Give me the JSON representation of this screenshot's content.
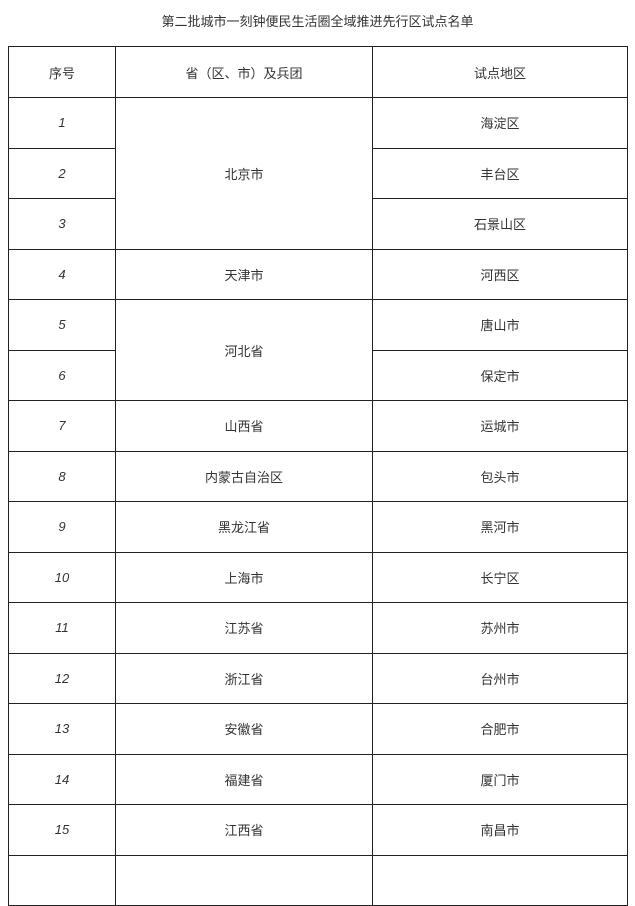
{
  "title": "第二批城市一刻钟便民生活圈全域推进先行区试点名单",
  "headers": {
    "index": "序号",
    "province": "省（区、市）及兵团",
    "region": "试点地区"
  },
  "rows": [
    {
      "index": "1",
      "province": "北京市",
      "region": "海淀区"
    },
    {
      "index": "2",
      "province": "北京市",
      "region": "丰台区"
    },
    {
      "index": "3",
      "province": "北京市",
      "region": "石景山区"
    },
    {
      "index": "4",
      "province": "天津市",
      "region": "河西区"
    },
    {
      "index": "5",
      "province": "河北省",
      "region": "唐山市"
    },
    {
      "index": "6",
      "province": "河北省",
      "region": "保定市"
    },
    {
      "index": "7",
      "province": "山西省",
      "region": "运城市"
    },
    {
      "index": "8",
      "province": "内蒙古自治区",
      "region": "包头市"
    },
    {
      "index": "9",
      "province": "黑龙江省",
      "region": "黑河市"
    },
    {
      "index": "10",
      "province": "上海市",
      "region": "长宁区"
    },
    {
      "index": "11",
      "province": "江苏省",
      "region": "苏州市"
    },
    {
      "index": "12",
      "province": "浙江省",
      "region": "台州市"
    },
    {
      "index": "13",
      "province": "安徽省",
      "region": "合肥市"
    },
    {
      "index": "14",
      "province": "福建省",
      "region": "厦门市"
    },
    {
      "index": "15",
      "province": "江西省",
      "region": "南昌市"
    }
  ]
}
